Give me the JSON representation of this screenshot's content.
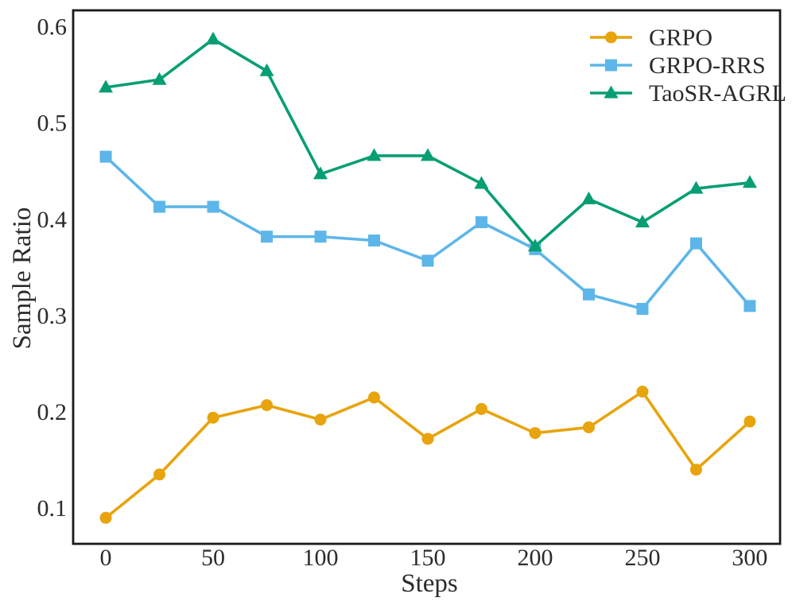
{
  "figure": {
    "background": "#ffffff",
    "frame_color": "#1a1a1a",
    "text_color": "#2b2b2b"
  },
  "chart_data": {
    "type": "line",
    "title": "",
    "xlabel": "Steps",
    "ylabel": "Sample Ratio",
    "x": [
      0,
      25,
      50,
      75,
      100,
      125,
      150,
      175,
      200,
      225,
      250,
      275,
      300
    ],
    "xticks": [
      0,
      50,
      100,
      150,
      200,
      250,
      300
    ],
    "yticks": [
      0.1,
      0.2,
      0.3,
      0.4,
      0.5,
      0.6
    ],
    "xlim": [
      -15.2,
      314.1
    ],
    "ylim": [
      0.063,
      0.617
    ],
    "grid": false,
    "legend_position": "upper right",
    "legend_frame": false,
    "series": [
      {
        "name": "GRPO",
        "color": "#E8A40D",
        "marker": "circle",
        "values": [
          0.09,
          0.135,
          0.194,
          0.207,
          0.192,
          0.215,
          0.172,
          0.203,
          0.178,
          0.184,
          0.221,
          0.14,
          0.19
        ]
      },
      {
        "name": "GRPO-RRS",
        "color": "#5DB6E9",
        "marker": "square",
        "values": [
          0.465,
          0.413,
          0.413,
          0.382,
          0.382,
          0.378,
          0.357,
          0.397,
          0.369,
          0.322,
          0.307,
          0.375,
          0.31
        ]
      },
      {
        "name": "TaoSR-AGRL",
        "color": "#079E73",
        "marker": "triangle",
        "values": [
          0.537,
          0.545,
          0.587,
          0.554,
          0.447,
          0.466,
          0.466,
          0.437,
          0.372,
          0.421,
          0.397,
          0.432,
          0.438
        ]
      }
    ]
  }
}
